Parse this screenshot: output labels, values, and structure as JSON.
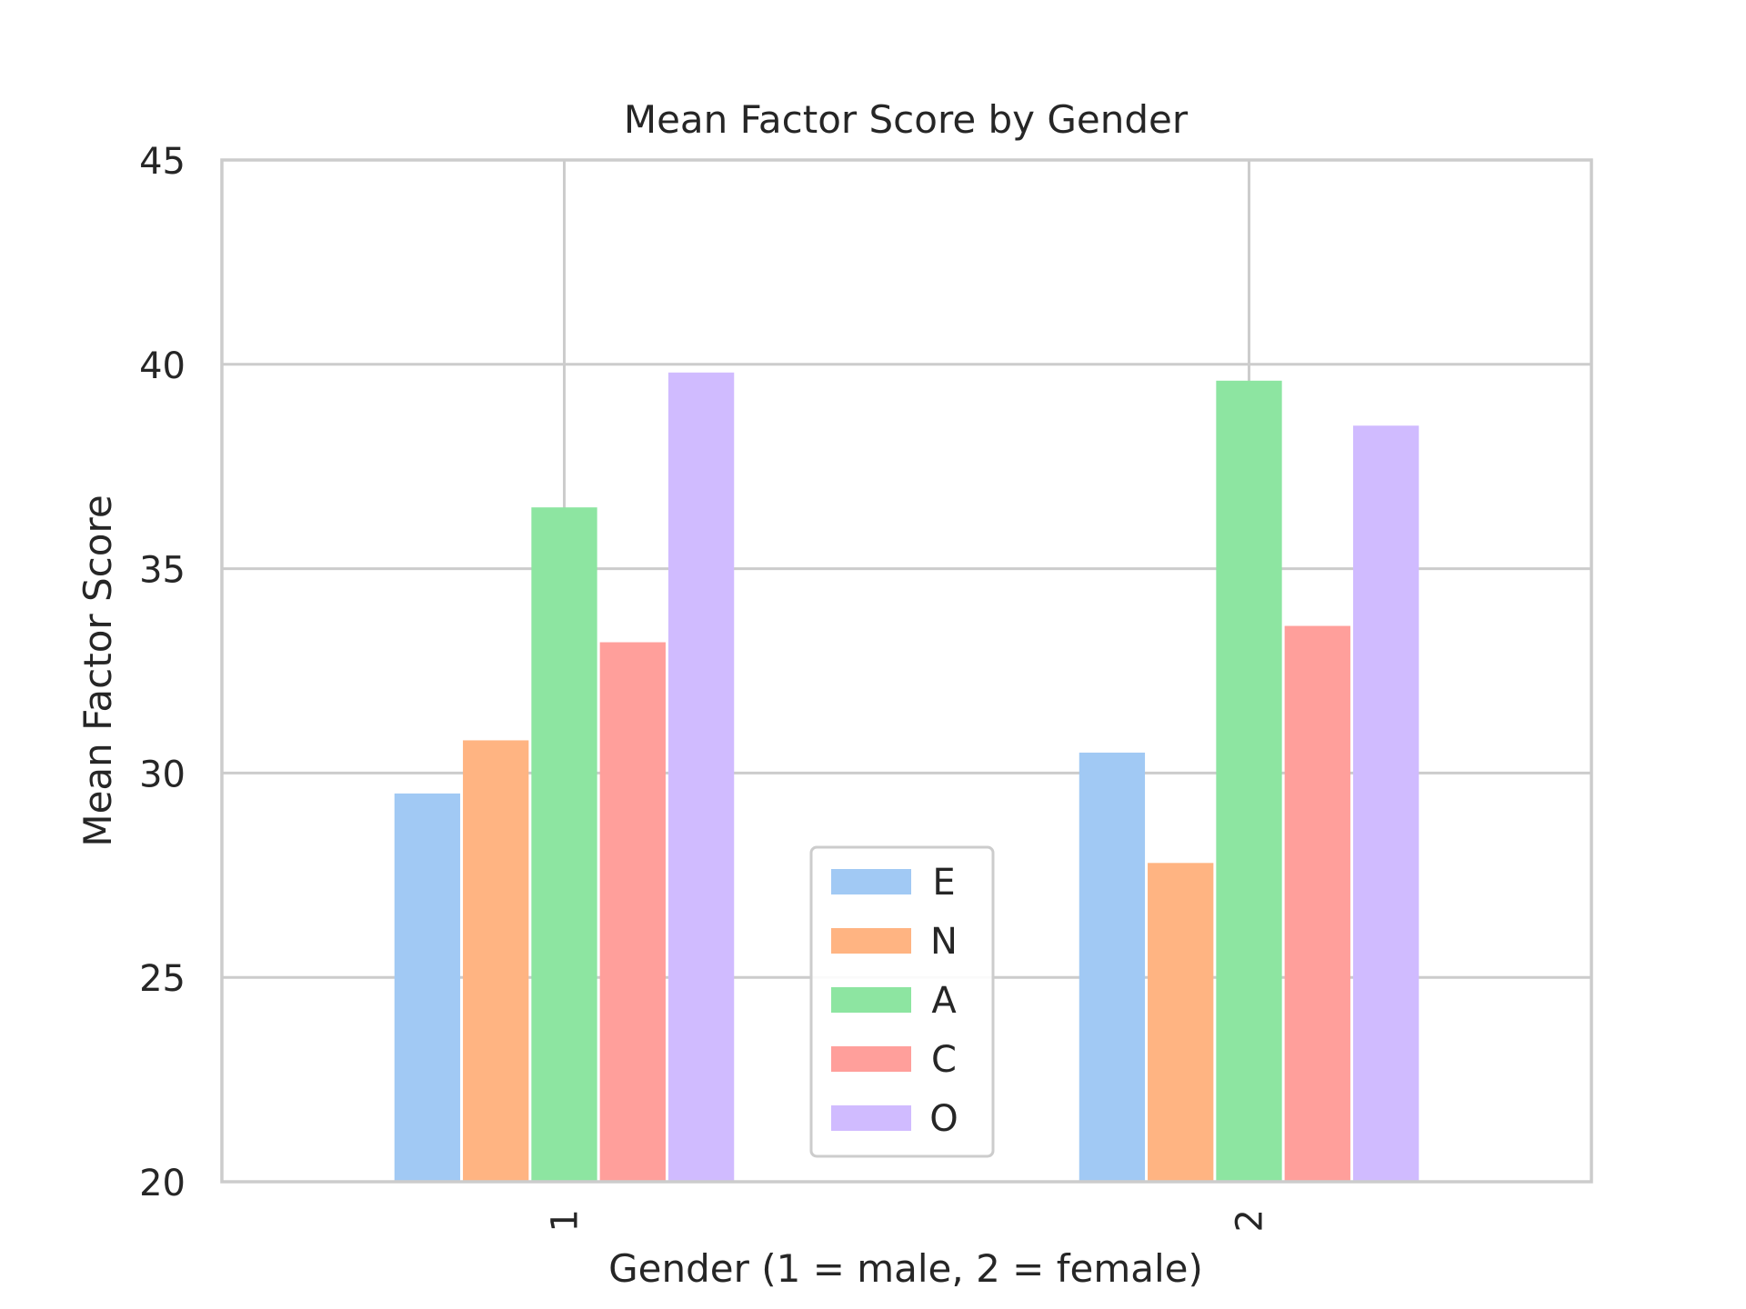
{
  "chart_data": {
    "type": "bar",
    "title": "Mean Factor Score by Gender",
    "xlabel": "Gender (1 = male, 2 = female)",
    "ylabel": "Mean Factor Score",
    "categories": [
      "1",
      "2"
    ],
    "ylim": [
      20,
      45
    ],
    "yticks": [
      20,
      25,
      30,
      35,
      40,
      45
    ],
    "grid": true,
    "legend": "bottom-center",
    "series": [
      {
        "name": "E",
        "values": [
          29.5,
          30.5
        ],
        "color": "#a1c9f4"
      },
      {
        "name": "N",
        "values": [
          30.8,
          27.8
        ],
        "color": "#ffb482"
      },
      {
        "name": "A",
        "values": [
          36.5,
          39.6
        ],
        "color": "#8de5a1"
      },
      {
        "name": "C",
        "values": [
          33.2,
          33.6
        ],
        "color": "#ff9f9b"
      },
      {
        "name": "O",
        "values": [
          39.8,
          38.5
        ],
        "color": "#d0bbff"
      }
    ]
  }
}
